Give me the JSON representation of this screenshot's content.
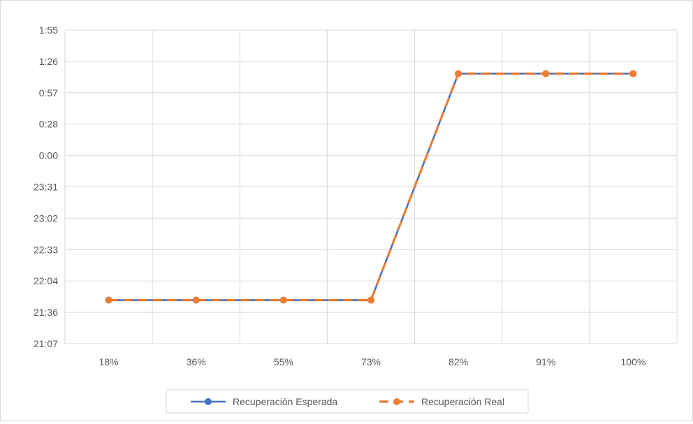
{
  "chart_data": {
    "type": "line",
    "title": "",
    "xlabel": "",
    "ylabel": "",
    "categories": [
      "18%",
      "36%",
      "55%",
      "73%",
      "82%",
      "91%",
      "100%"
    ],
    "y_ticks": [
      "21:07",
      "21:36",
      "22:04",
      "22:33",
      "23:02",
      "23:31",
      "0:00",
      "0:28",
      "0:57",
      "1:26",
      "1:55"
    ],
    "y_unit": "minutes relative to 0:00",
    "ylim": [
      -173,
      115
    ],
    "grid": true,
    "legend_position": "bottom",
    "series": [
      {
        "name": "Recuperación Esperada",
        "color": "#4472c4",
        "line_style": "solid",
        "values": [
          -133,
          -133,
          -133,
          -133,
          75,
          75,
          75
        ]
      },
      {
        "name": "Recuperación Real",
        "color": "#ed7d31",
        "line_style": "dashed",
        "values": [
          -133,
          -133,
          -133,
          -133,
          75,
          75,
          75
        ]
      }
    ]
  }
}
